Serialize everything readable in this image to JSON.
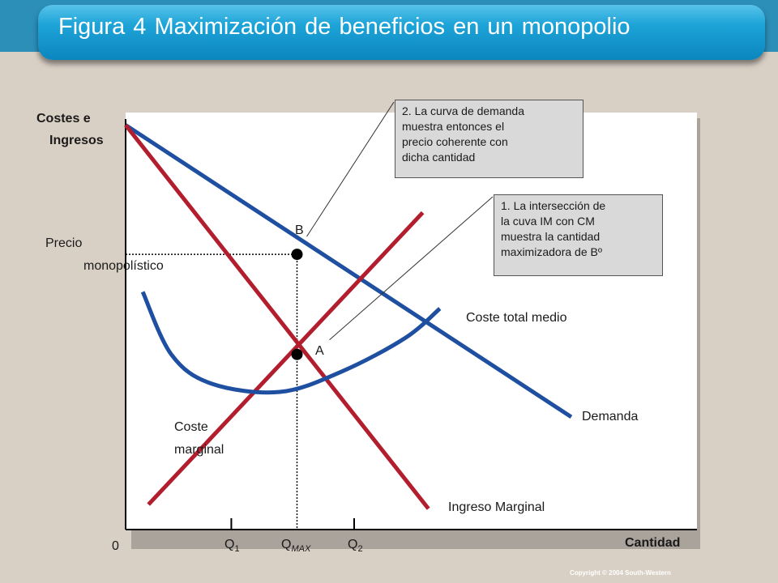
{
  "slide": {
    "title": "Figura 4 Maximización de beneficios en un  monopolio",
    "copyright": "Copyright © 2004  South-Western"
  },
  "colors": {
    "demand": "#1f4fa0",
    "marginal": "#b21e2e",
    "title_bg": "#1ea4d8",
    "annotation_bg": "#d9d9d9"
  },
  "chart_data": {
    "type": "line",
    "xlabel": "Cantidad",
    "ylabel_lines": [
      "Costes e",
      "Ingresos"
    ],
    "origin_label": "0",
    "xlim": [
      0,
      1
    ],
    "ylim": [
      0,
      1
    ],
    "grid": false,
    "series": [
      {
        "name": "Demanda",
        "color": "#1f4fa0",
        "x": [
          0,
          0.78
        ],
        "y": [
          0.97,
          0.27
        ]
      },
      {
        "name": "Ingreso Marginal",
        "color": "#b21e2e",
        "x": [
          0,
          0.53
        ],
        "y": [
          0.97,
          0.05
        ]
      },
      {
        "name": "Coste marginal",
        "color": "#b21e2e",
        "x": [
          0.04,
          0.52
        ],
        "y": [
          0.06,
          0.76
        ]
      },
      {
        "name": "Coste total medio",
        "color": "#1f4fa0",
        "x": [
          0.03,
          0.08,
          0.15,
          0.27,
          0.38,
          0.49,
          0.55
        ],
        "y": [
          0.57,
          0.42,
          0.35,
          0.33,
          0.38,
          0.46,
          0.53
        ]
      }
    ],
    "x_ticks": [
      {
        "x": 0.185,
        "label": "Q",
        "sub": "1"
      },
      {
        "x": 0.3,
        "label": "Q",
        "sub": "MAX"
      },
      {
        "x": 0.4,
        "label": "Q",
        "sub": "2"
      }
    ],
    "points": [
      {
        "label": "B",
        "x": 0.3,
        "y": 0.66
      },
      {
        "label": "A",
        "x": 0.3,
        "y": 0.42
      }
    ],
    "price_label": [
      "Precio",
      "monopolístico"
    ],
    "annotations": [
      {
        "lines": [
          "2.  La curva de demanda",
          "muestra entonces el",
          "precio coherente con",
          "dicha cantidad"
        ]
      },
      {
        "lines": [
          "1. La intersección de",
          "la cuva IM con CM",
          "muestra la cantidad",
          "maximizadora de Bº"
        ]
      }
    ]
  }
}
